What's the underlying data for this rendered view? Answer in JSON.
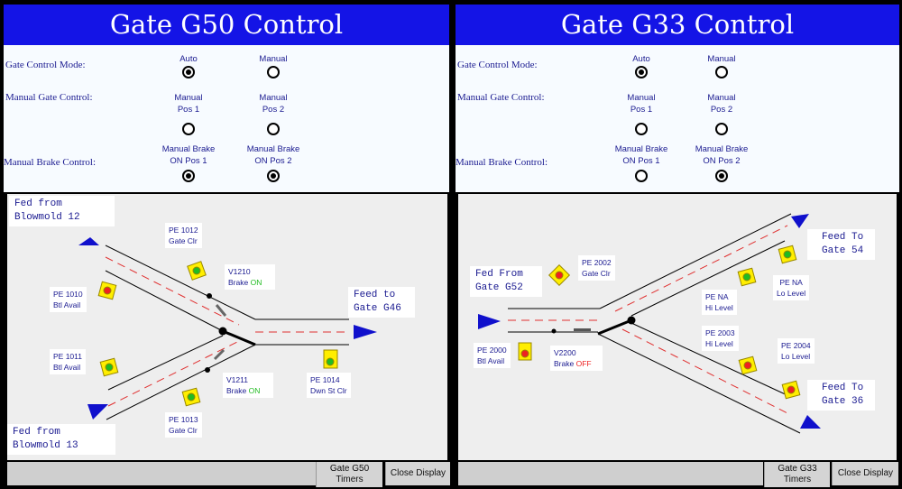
{
  "colors": {
    "title_bar": "#1414e6",
    "sensor": "#ffee00",
    "ok": "#22bb22",
    "alarm": "#ee2222",
    "arrow": "#1010cc"
  },
  "common": {
    "mode_label": "Gate Control Mode:",
    "manual_gate_label": "Manual Gate Control:",
    "manual_brake_label": "Manual Brake Control:",
    "auto": "Auto",
    "manual": "Manual",
    "pos1": "Manual\nPos 1",
    "pos2": "Manual\nPos 2",
    "brake1": "Manual Brake\nON Pos 1",
    "brake2": "Manual Brake\nON Pos 2",
    "close": "Close Display"
  },
  "left": {
    "title": "Gate G50 Control",
    "radios": {
      "auto": true,
      "manual": false,
      "pos1": false,
      "pos2": false,
      "brake1": true,
      "brake2": true
    },
    "fed12": "Fed from\nBlowmold 12",
    "fed13": "Fed from\nBlowmold 13",
    "feed_to": "Feed to\nGate G46",
    "pe1012": [
      "PE 1012",
      "Gate Clr"
    ],
    "pe1010": [
      "PE 1010",
      "Btl Avail"
    ],
    "pe1011": [
      "PE 1011",
      "Btl Avail"
    ],
    "pe1013": [
      "PE 1013",
      "Gate Clr"
    ],
    "pe1014": [
      "PE 1014",
      "Dwn St Clr"
    ],
    "v1210": {
      "name": "V1210",
      "label": "Brake",
      "state": "ON"
    },
    "v1211": {
      "name": "V1211",
      "label": "Brake",
      "state": "ON"
    },
    "timers": "Gate G50\nTimers"
  },
  "right": {
    "title": "Gate G33 Control",
    "radios": {
      "auto": true,
      "manual": false,
      "pos1": false,
      "pos2": false,
      "brake1": false,
      "brake2": true
    },
    "fed": "Fed From\nGate G52",
    "feed54": "Feed To\nGate 54",
    "feed36": "Feed To\nGate 36",
    "pe2002": [
      "PE 2002",
      "Gate Clr"
    ],
    "pena_lo": [
      "PE NA",
      "Lo Level"
    ],
    "pena_hi": [
      "PE NA",
      "Hi Level"
    ],
    "pe2003": [
      "PE 2003",
      "Hi Level"
    ],
    "pe2004": [
      "PE 2004",
      "Lo Level"
    ],
    "pe2000": [
      "PE 2000",
      "Btl Avail"
    ],
    "v2200": {
      "name": "V2200",
      "label": "Brake",
      "state": "OFF"
    },
    "timers": "Gate G33\nTimers"
  }
}
